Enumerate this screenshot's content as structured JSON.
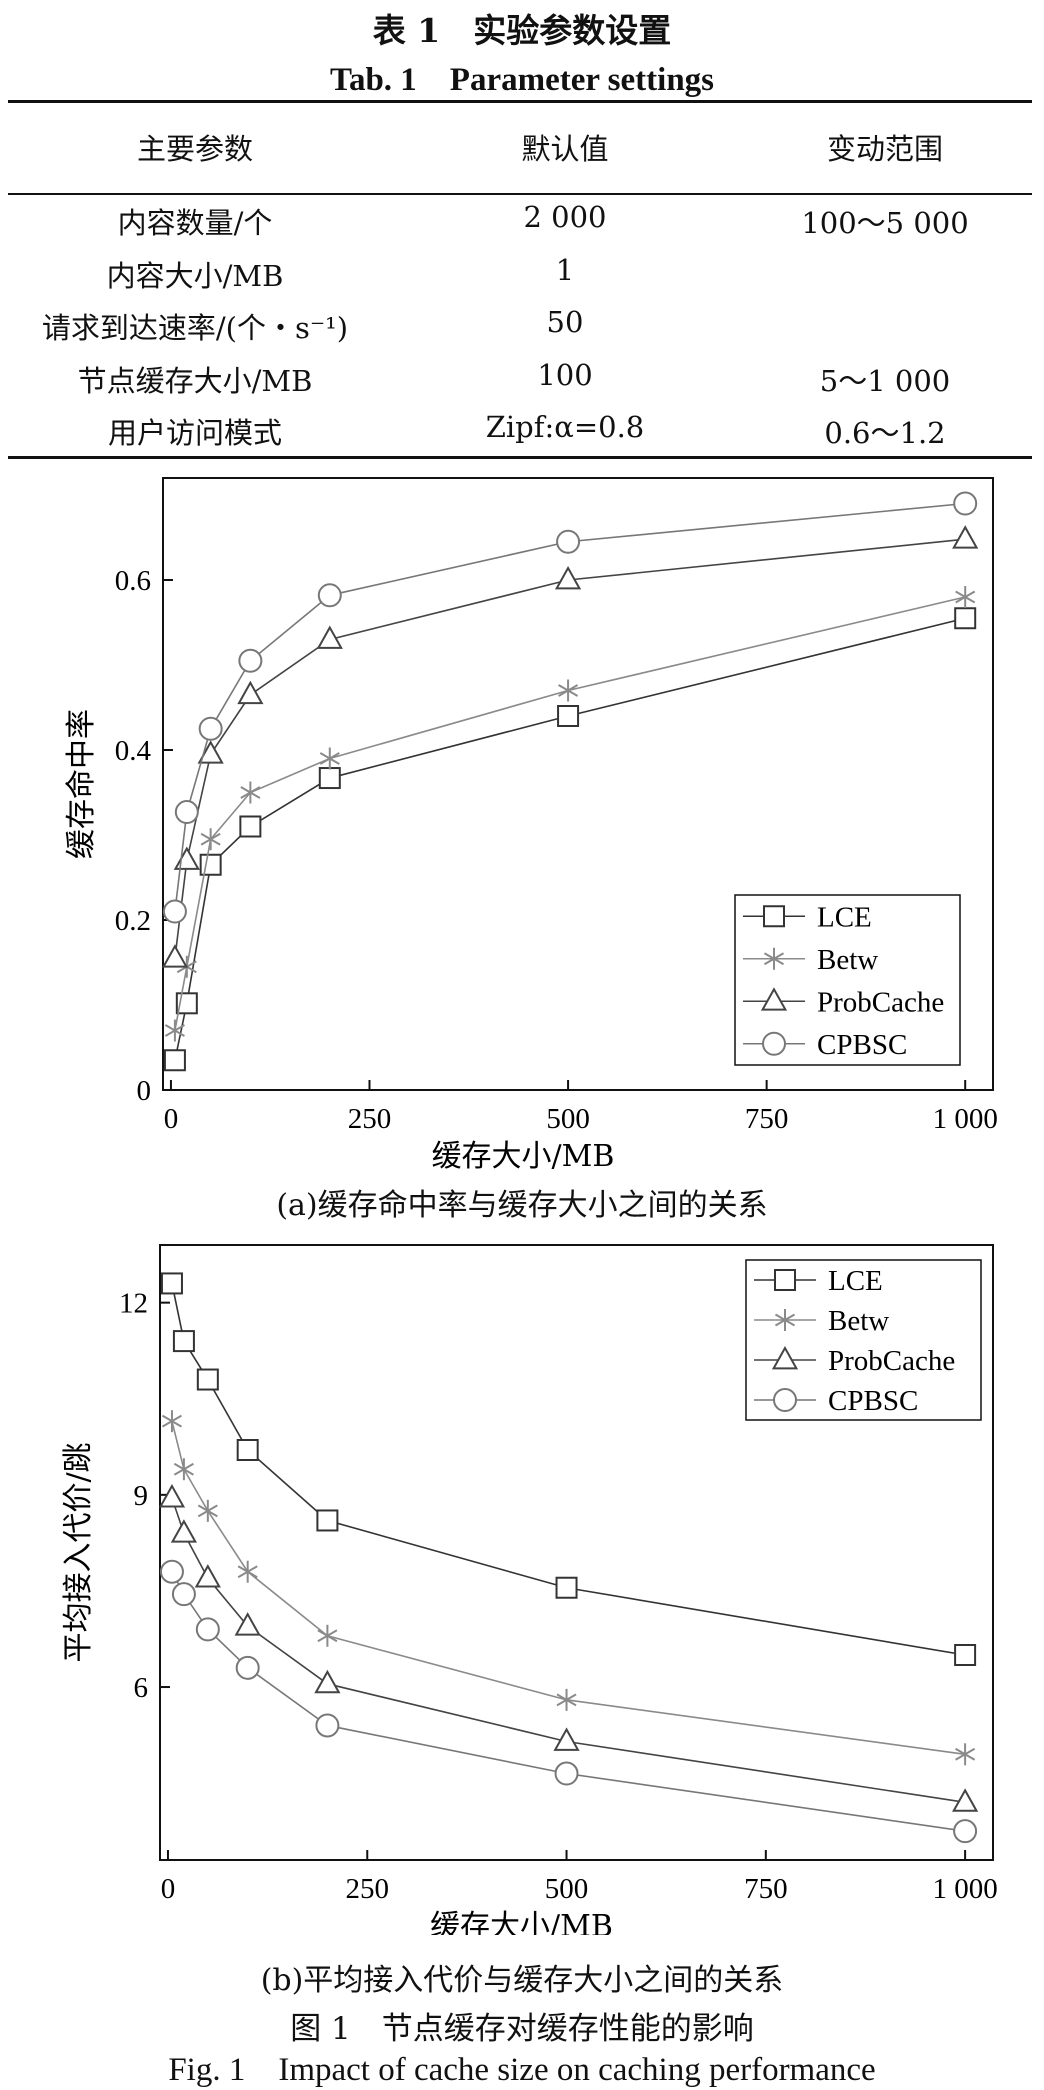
{
  "table": {
    "caption_cn": "表 1　实验参数设置",
    "caption_en": "Tab. 1　Parameter settings",
    "headers": [
      "主要参数",
      "默认值",
      "变动范围"
    ],
    "rows": [
      [
        "内容数量/个",
        "2 000",
        "100～5 000"
      ],
      [
        "内容大小/MB",
        "1",
        ""
      ],
      [
        "请求到达速率/(个・s⁻¹)",
        "50",
        ""
      ],
      [
        "节点缓存大小/MB",
        "100",
        "5～1 000"
      ],
      [
        "用户访问模式",
        "Zipf:α=0.8",
        "0.6～1.2"
      ]
    ]
  },
  "chart_data": [
    {
      "type": "line",
      "subcaption": "(a)缓存命中率与缓存大小之间的关系",
      "xlabel": "缓存大小/MB",
      "ylabel": "缓存命中率",
      "xlim": [
        -10,
        1035
      ],
      "ylim": [
        0,
        0.72
      ],
      "xticks": [
        0,
        250,
        500,
        750,
        1000
      ],
      "xtick_labels": [
        "0",
        "250",
        "500",
        "750",
        "1 000"
      ],
      "yticks": [
        0,
        0.2,
        0.4,
        0.6
      ],
      "ytick_labels": [
        "0",
        "0.2",
        "0.4",
        "0.6"
      ],
      "legend_position": "bottom-right",
      "series": [
        {
          "name": "LCE",
          "marker": "square",
          "color": "#333333",
          "x": [
            5,
            20,
            50,
            100,
            200,
            500,
            1000
          ],
          "y": [
            0.035,
            0.102,
            0.265,
            0.31,
            0.367,
            0.44,
            0.555
          ]
        },
        {
          "name": "Betw",
          "marker": "asterisk",
          "color": "#8a8a8a",
          "x": [
            5,
            20,
            50,
            100,
            200,
            500,
            1000
          ],
          "y": [
            0.07,
            0.145,
            0.295,
            0.35,
            0.39,
            0.47,
            0.58
          ]
        },
        {
          "name": "ProbCache",
          "marker": "triangle",
          "color": "#444444",
          "x": [
            5,
            20,
            50,
            100,
            200,
            500,
            1000
          ],
          "y": [
            0.155,
            0.27,
            0.395,
            0.465,
            0.53,
            0.6,
            0.648
          ]
        },
        {
          "name": "CPBSC",
          "marker": "circle",
          "color": "#777777",
          "x": [
            5,
            20,
            50,
            100,
            200,
            500,
            1000
          ],
          "y": [
            0.21,
            0.327,
            0.425,
            0.505,
            0.582,
            0.645,
            0.69
          ]
        }
      ]
    },
    {
      "type": "line",
      "subcaption": "(b)平均接入代价与缓存大小之间的关系",
      "xlabel": "缓存大小/MB",
      "ylabel": "平均接入代价/跳",
      "xlim": [
        -10,
        1035
      ],
      "ylim": [
        3.3,
        12.9
      ],
      "xticks": [
        0,
        250,
        500,
        750,
        1000
      ],
      "xtick_labels": [
        "0",
        "250",
        "500",
        "750",
        "1 000"
      ],
      "yticks": [
        6,
        9,
        12
      ],
      "ytick_labels": [
        "6",
        "9",
        "12"
      ],
      "legend_position": "top-right",
      "series": [
        {
          "name": "LCE",
          "marker": "square",
          "color": "#333333",
          "x": [
            5,
            20,
            50,
            100,
            200,
            500,
            1000
          ],
          "y": [
            12.3,
            11.4,
            10.8,
            9.7,
            8.6,
            7.55,
            6.5
          ]
        },
        {
          "name": "Betw",
          "marker": "asterisk",
          "color": "#8a8a8a",
          "x": [
            5,
            20,
            50,
            100,
            200,
            500,
            1000
          ],
          "y": [
            10.15,
            9.4,
            8.75,
            7.8,
            6.8,
            5.8,
            4.95
          ]
        },
        {
          "name": "ProbCache",
          "marker": "triangle",
          "color": "#444444",
          "x": [
            5,
            20,
            50,
            100,
            200,
            500,
            1000
          ],
          "y": [
            8.95,
            8.4,
            7.7,
            6.95,
            6.05,
            5.15,
            4.2
          ]
        },
        {
          "name": "CPBSC",
          "marker": "circle",
          "color": "#777777",
          "x": [
            5,
            20,
            50,
            100,
            200,
            500,
            1000
          ],
          "y": [
            7.8,
            7.45,
            6.9,
            6.3,
            5.4,
            4.65,
            3.75
          ]
        }
      ]
    }
  ],
  "figure": {
    "caption_cn": "图 1　节点缓存对缓存性能的影响",
    "caption_en": "Fig. 1　Impact of cache size on caching performance"
  }
}
